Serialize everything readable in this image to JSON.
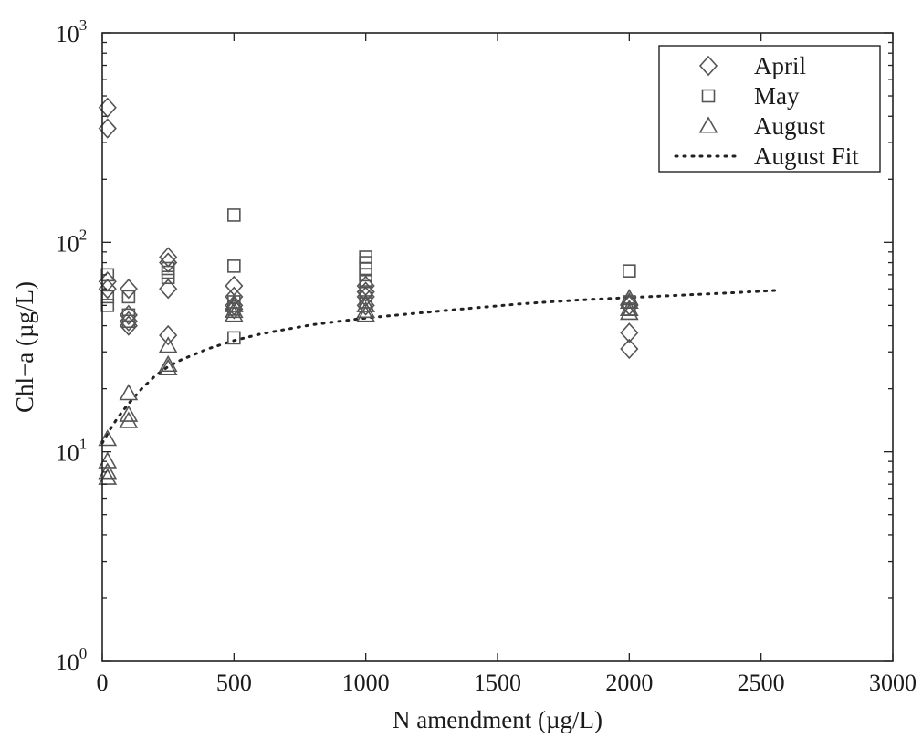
{
  "chart_data": {
    "type": "scatter",
    "xlabel": "N amendment (µg/L)",
    "ylabel": "Chl−a (µg/L)",
    "xlim": [
      0,
      3000
    ],
    "ylim": [
      1,
      1000
    ],
    "yscale": "log",
    "grid": false,
    "legend_position": "top-right",
    "x_ticks": [
      {
        "value": 0,
        "label": "0"
      },
      {
        "value": 500,
        "label": "500"
      },
      {
        "value": 1000,
        "label": "1000"
      },
      {
        "value": 1500,
        "label": "1500"
      },
      {
        "value": 2000,
        "label": "2000"
      },
      {
        "value": 2500,
        "label": "2500"
      },
      {
        "value": 3000,
        "label": "3000"
      }
    ],
    "y_ticks": [
      {
        "value": 1,
        "base": "10",
        "exp": "0"
      },
      {
        "value": 10,
        "base": "10",
        "exp": "1"
      },
      {
        "value": 100,
        "base": "10",
        "exp": "2"
      },
      {
        "value": 1000,
        "base": "10",
        "exp": "3"
      }
    ],
    "series": [
      {
        "name": "April",
        "marker": "diamond",
        "points": [
          [
            20,
            440
          ],
          [
            20,
            350
          ],
          [
            20,
            65
          ],
          [
            20,
            60
          ],
          [
            100,
            60
          ],
          [
            100,
            45
          ],
          [
            100,
            42
          ],
          [
            100,
            40
          ],
          [
            250,
            85
          ],
          [
            250,
            80
          ],
          [
            250,
            60
          ],
          [
            250,
            36
          ],
          [
            500,
            62
          ],
          [
            500,
            55
          ],
          [
            500,
            50
          ],
          [
            500,
            48
          ],
          [
            1000,
            62
          ],
          [
            1000,
            58
          ],
          [
            1000,
            55
          ],
          [
            1000,
            50
          ],
          [
            2000,
            50
          ],
          [
            2000,
            37
          ],
          [
            2000,
            31
          ]
        ]
      },
      {
        "name": "May",
        "marker": "square",
        "points": [
          [
            20,
            70
          ],
          [
            20,
            55
          ],
          [
            20,
            50
          ],
          [
            100,
            55
          ],
          [
            100,
            45
          ],
          [
            100,
            42
          ],
          [
            250,
            75
          ],
          [
            250,
            72
          ],
          [
            250,
            68
          ],
          [
            500,
            135
          ],
          [
            500,
            77
          ],
          [
            500,
            52
          ],
          [
            500,
            48
          ],
          [
            500,
            35
          ],
          [
            1000,
            85
          ],
          [
            1000,
            80
          ],
          [
            1000,
            75
          ],
          [
            1000,
            70
          ],
          [
            1000,
            65
          ],
          [
            1000,
            58
          ],
          [
            1000,
            52
          ],
          [
            2000,
            73
          ],
          [
            2000,
            52
          ],
          [
            2000,
            48
          ]
        ]
      },
      {
        "name": "August",
        "marker": "triangle",
        "points": [
          [
            20,
            11.5
          ],
          [
            20,
            9
          ],
          [
            20,
            8
          ],
          [
            20,
            7.5
          ],
          [
            100,
            19
          ],
          [
            100,
            15
          ],
          [
            100,
            14
          ],
          [
            250,
            32
          ],
          [
            250,
            26
          ],
          [
            250,
            25
          ],
          [
            500,
            50
          ],
          [
            500,
            47
          ],
          [
            500,
            45
          ],
          [
            1000,
            50
          ],
          [
            1000,
            47
          ],
          [
            1000,
            45
          ],
          [
            2000,
            54
          ],
          [
            2000,
            52
          ],
          [
            2000,
            48
          ],
          [
            2000,
            46
          ]
        ]
      },
      {
        "name": "August Fit",
        "line": "dotted",
        "points": [
          [
            0,
            11
          ],
          [
            25,
            12.5
          ],
          [
            50,
            14
          ],
          [
            75,
            15.5
          ],
          [
            100,
            17
          ],
          [
            150,
            20
          ],
          [
            200,
            23
          ],
          [
            250,
            25.5
          ],
          [
            300,
            27.5
          ],
          [
            400,
            31
          ],
          [
            500,
            34
          ],
          [
            600,
            36.5
          ],
          [
            700,
            38.5
          ],
          [
            800,
            40.5
          ],
          [
            900,
            42
          ],
          [
            1000,
            43.5
          ],
          [
            1200,
            46
          ],
          [
            1400,
            48.5
          ],
          [
            1600,
            51
          ],
          [
            1800,
            53
          ],
          [
            2000,
            54.5
          ],
          [
            2200,
            56
          ],
          [
            2400,
            57.5
          ],
          [
            2560,
            59
          ]
        ]
      }
    ]
  }
}
